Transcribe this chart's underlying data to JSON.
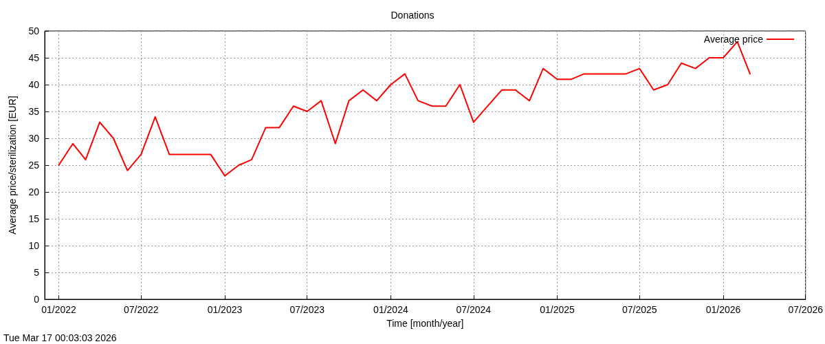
{
  "chart_data": {
    "type": "line",
    "title": "Donations",
    "xlabel": "Time [month/year]",
    "ylabel": "Average price/sterilization [EUR]",
    "x": [
      "2022-01",
      "2022-02",
      "2022-03",
      "2022-04",
      "2022-05",
      "2022-06",
      "2022-07",
      "2022-08",
      "2022-09",
      "2022-10",
      "2022-11",
      "2022-12",
      "2023-01",
      "2023-02",
      "2023-03",
      "2023-04",
      "2023-05",
      "2023-06",
      "2023-07",
      "2023-08",
      "2023-09",
      "2023-10",
      "2023-11",
      "2023-12",
      "2024-01",
      "2024-02",
      "2024-03",
      "2024-04",
      "2024-05",
      "2024-06",
      "2024-07",
      "2024-08",
      "2024-09",
      "2024-10",
      "2024-11",
      "2024-12",
      "2025-01",
      "2025-02",
      "2025-03",
      "2025-04",
      "2025-05",
      "2025-06",
      "2025-07",
      "2025-08",
      "2025-09",
      "2025-10",
      "2025-11",
      "2025-12",
      "2026-01",
      "2026-02",
      "2026-03"
    ],
    "series": [
      {
        "name": "Average price",
        "color": "#ff0000",
        "values": [
          25,
          29,
          26,
          33,
          30,
          24,
          27,
          34,
          27,
          27,
          27,
          27,
          23,
          25,
          26,
          32,
          32,
          36,
          35,
          37,
          29,
          37,
          39,
          37,
          40,
          42,
          37,
          36,
          36,
          40,
          33,
          36,
          39,
          39,
          37,
          43,
          41,
          41,
          42,
          42,
          42,
          42,
          43,
          39,
          40,
          44,
          43,
          45,
          45,
          48,
          42
        ]
      }
    ],
    "xlim": [
      "2021-12",
      "2026-07"
    ],
    "xticks": [
      {
        "value": "2022-01",
        "label": "01/2022"
      },
      {
        "value": "2022-07",
        "label": "07/2022"
      },
      {
        "value": "2023-01",
        "label": "01/2023"
      },
      {
        "value": "2023-07",
        "label": "07/2023"
      },
      {
        "value": "2024-01",
        "label": "01/2024"
      },
      {
        "value": "2024-07",
        "label": "07/2024"
      },
      {
        "value": "2025-01",
        "label": "01/2025"
      },
      {
        "value": "2025-07",
        "label": "07/2025"
      },
      {
        "value": "2026-01",
        "label": "01/2026"
      },
      {
        "value": "2026-07",
        "label": "07/2026"
      }
    ],
    "ylim": [
      0,
      50
    ],
    "yticks": [
      0,
      5,
      10,
      15,
      20,
      25,
      30,
      35,
      40,
      45,
      50
    ],
    "grid": true,
    "legend": "top right",
    "marker": "none",
    "line_style": "solid",
    "annotations": [
      "Tue Mar 17 00:03:03 2026"
    ]
  }
}
